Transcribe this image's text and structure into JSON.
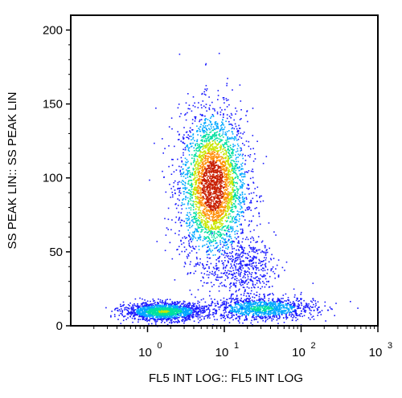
{
  "chart_data": {
    "type": "scatter",
    "title": "",
    "xlabel": "FL5 INT LOG:: FL5 INT LOG",
    "ylabel": "SS PEAK LIN:: SS PEAK LIN",
    "x_scale": "log",
    "xlim": [
      0.1,
      1000
    ],
    "ylim": [
      0,
      210
    ],
    "x_ticks": [
      {
        "base": "10",
        "exp": "0",
        "value": 1
      },
      {
        "base": "10",
        "exp": "1",
        "value": 10
      },
      {
        "base": "10",
        "exp": "2",
        "value": 100
      },
      {
        "base": "10",
        "exp": "3",
        "value": 1000
      }
    ],
    "y_ticks": [
      0,
      50,
      100,
      150,
      200
    ],
    "y_tick_labels": [
      "0",
      "50",
      "100",
      "150",
      "200"
    ],
    "grid": false,
    "legend": "none",
    "color_scale": [
      "#1a1aff",
      "#00a8ff",
      "#00e0a0",
      "#c8e600",
      "#ff8c00",
      "#c81e00"
    ],
    "populations": [
      {
        "x_center": 7,
        "y_center": 95,
        "x_spread_decades": 0.22,
        "y_spread": 25,
        "relative_density": 1.0
      },
      {
        "x_center": 1.6,
        "y_center": 10,
        "x_spread_decades": 0.25,
        "y_spread": 3,
        "relative_density": 0.5
      },
      {
        "x_center": 30,
        "y_center": 12,
        "x_spread_decades": 0.35,
        "y_spread": 4,
        "relative_density": 0.35
      },
      {
        "x_center": 18,
        "y_center": 40,
        "x_spread_decades": 0.2,
        "y_spread": 10,
        "relative_density": 0.15
      }
    ]
  }
}
